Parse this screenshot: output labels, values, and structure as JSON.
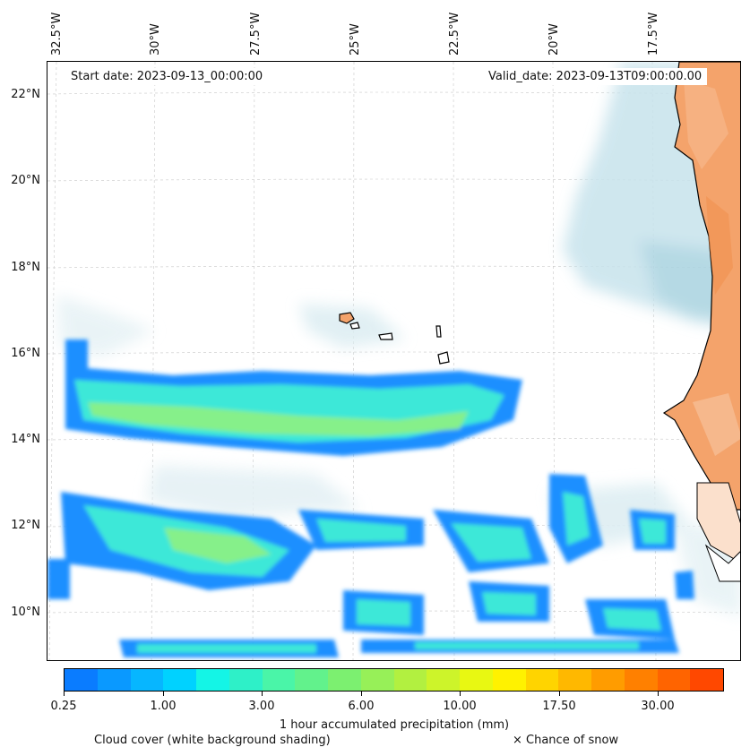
{
  "map": {
    "start_date": "Start date: 2023-09-13_00:00:00",
    "valid_date": "Valid_date: 2023-09-13T09:00:00.00",
    "lon_labels": [
      "32.5°W",
      "30°W",
      "27.5°W",
      "25°W",
      "22.5°W",
      "20°W",
      "17.5°W"
    ],
    "lat_labels": [
      "22°N",
      "20°N",
      "18°N",
      "16°N",
      "14°N",
      "12°N",
      "10°N"
    ],
    "colors": {
      "land": "#f4a36b",
      "coast": "#000000",
      "cloud_shade": "#cfe6ee",
      "precip_edge": "#1e8fff",
      "precip_mid": "#3de8d8",
      "precip_core": "#86f08a"
    }
  },
  "colorbar": {
    "title": "1 hour accumulated precipitation (mm)",
    "tick_labels": [
      "0.25",
      "1.00",
      "3.00",
      "6.00",
      "10.00",
      "17.50",
      "30.00"
    ],
    "colors": [
      "#0a7cff",
      "#0a99ff",
      "#07b6ff",
      "#00d2ff",
      "#14f5e6",
      "#2ef0c8",
      "#4af5a8",
      "#62f28c",
      "#7cf070",
      "#97f058",
      "#b2f040",
      "#cdf42a",
      "#e8f812",
      "#fff200",
      "#ffd400",
      "#ffb800",
      "#ff9c00",
      "#ff8000",
      "#ff6400",
      "#ff4800"
    ]
  },
  "legend": {
    "cloud_note": "Cloud cover (white background shading)",
    "snow_note": "× Chance of snow"
  }
}
